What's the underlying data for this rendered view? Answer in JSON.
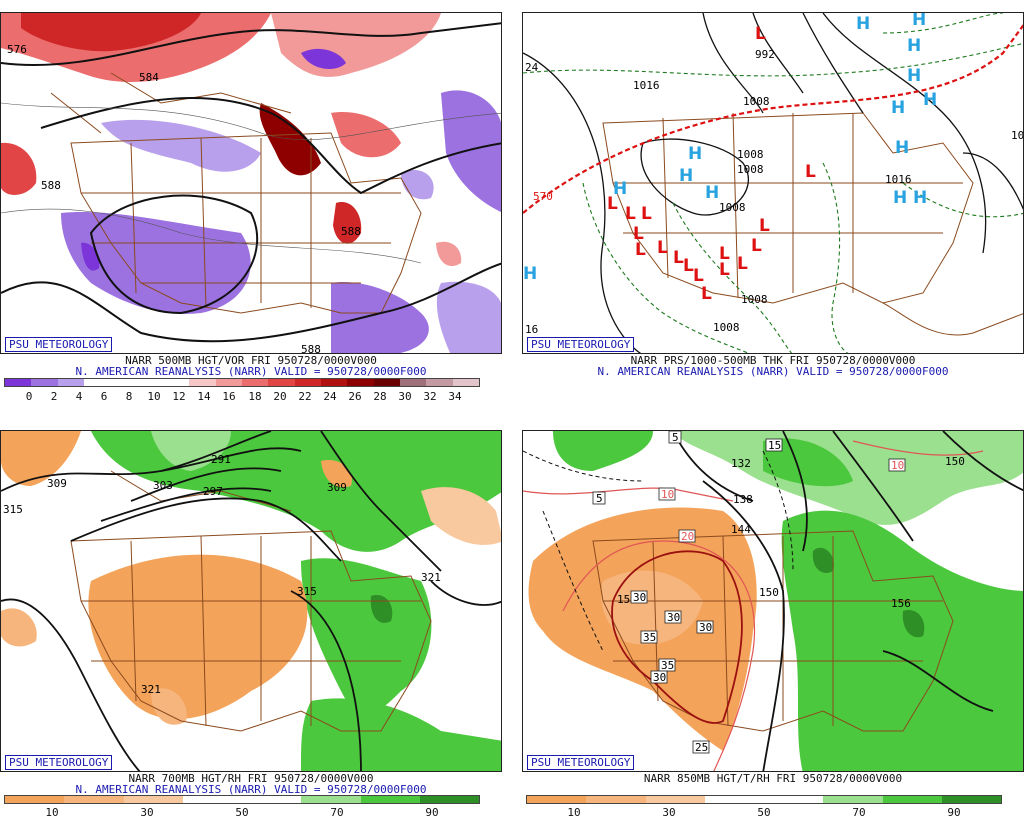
{
  "panels": [
    {
      "logo": "PSU METEOROLOGY",
      "caption1": "NARR 500MB HGT/VOR FRI 950728/0000V000",
      "caption2": "N. AMERICAN REANALYSIS (NARR) VALID = 950728/0000F000",
      "colorbar": {
        "colors": [
          "#7b35d8",
          "#9b72e0",
          "#b9a0ec",
          "#ffffff",
          "#ffffff",
          "#ffffff",
          "#ffffff",
          "#f7c6c6",
          "#f29a9a",
          "#ec6d6d",
          "#e14545",
          "#cf2727",
          "#b01010",
          "#8e0000",
          "#6b0000",
          "#a0707a",
          "#c49aa2",
          "#e2c4ca"
        ],
        "ticks": [
          "0",
          "2",
          "4",
          "6",
          "8",
          "10",
          "12",
          "14",
          "16",
          "18",
          "20",
          "22",
          "24",
          "26",
          "28",
          "30",
          "32",
          "34"
        ]
      },
      "labels": [
        "576",
        "584",
        "588",
        "588",
        "588"
      ]
    },
    {
      "logo": "PSU METEOROLOGY",
      "caption1": "NARR PRS/1000-500MB THK FRI 950728/0000V000",
      "caption2": "N. AMERICAN REANALYSIS (NARR) VALID = 950728/0000F000",
      "labels": [
        "24",
        "570",
        "992",
        "1016",
        "1008",
        "1008",
        "1008",
        "1008",
        "1008",
        "1008",
        "1016",
        "16",
        "10"
      ],
      "highs": [
        "H",
        "H",
        "H",
        "H",
        "H",
        "H",
        "H",
        "H",
        "H",
        "H",
        "H",
        "H",
        "H",
        "H"
      ],
      "lows": [
        "L",
        "L",
        "L",
        "L",
        "L",
        "L",
        "L",
        "L",
        "L",
        "L",
        "L",
        "L",
        "L",
        "L",
        "L",
        "L",
        "L"
      ]
    },
    {
      "logo": "PSU METEOROLOGY",
      "caption1": "NARR 700MB HGT/RH FRI 950728/0000V000",
      "caption2": "N. AMERICAN REANALYSIS (NARR) VALID = 950728/0000F000",
      "colorbar": {
        "colors": [
          "#f4a35a",
          "#f6b57c",
          "#f8c89e",
          "#ffffff",
          "#ffffff",
          "#9be08f",
          "#4cc83e",
          "#2e8f26"
        ],
        "ticks": [
          "10",
          "30",
          "50",
          "70",
          "90"
        ]
      },
      "labels": [
        "315",
        "309",
        "303",
        "297",
        "291",
        "309",
        "315",
        "321",
        "321"
      ]
    },
    {
      "logo": "PSU METEOROLOGY",
      "caption1": "NARR 850MB HGT/T/RH FRI 950728/0000V000",
      "caption2": "",
      "colorbar": {
        "colors": [
          "#f4a35a",
          "#f6b57c",
          "#f8c89e",
          "#ffffff",
          "#ffffff",
          "#9be08f",
          "#4cc83e",
          "#2e8f26"
        ],
        "ticks": [
          "10",
          "30",
          "50",
          "70",
          "90"
        ]
      },
      "labels": [
        "132",
        "138",
        "144",
        "150",
        "150",
        "156",
        "150",
        "5",
        "5",
        "15",
        "10",
        "10",
        "20",
        "30",
        "30",
        "30",
        "35",
        "35",
        "30",
        "25"
      ]
    }
  ]
}
